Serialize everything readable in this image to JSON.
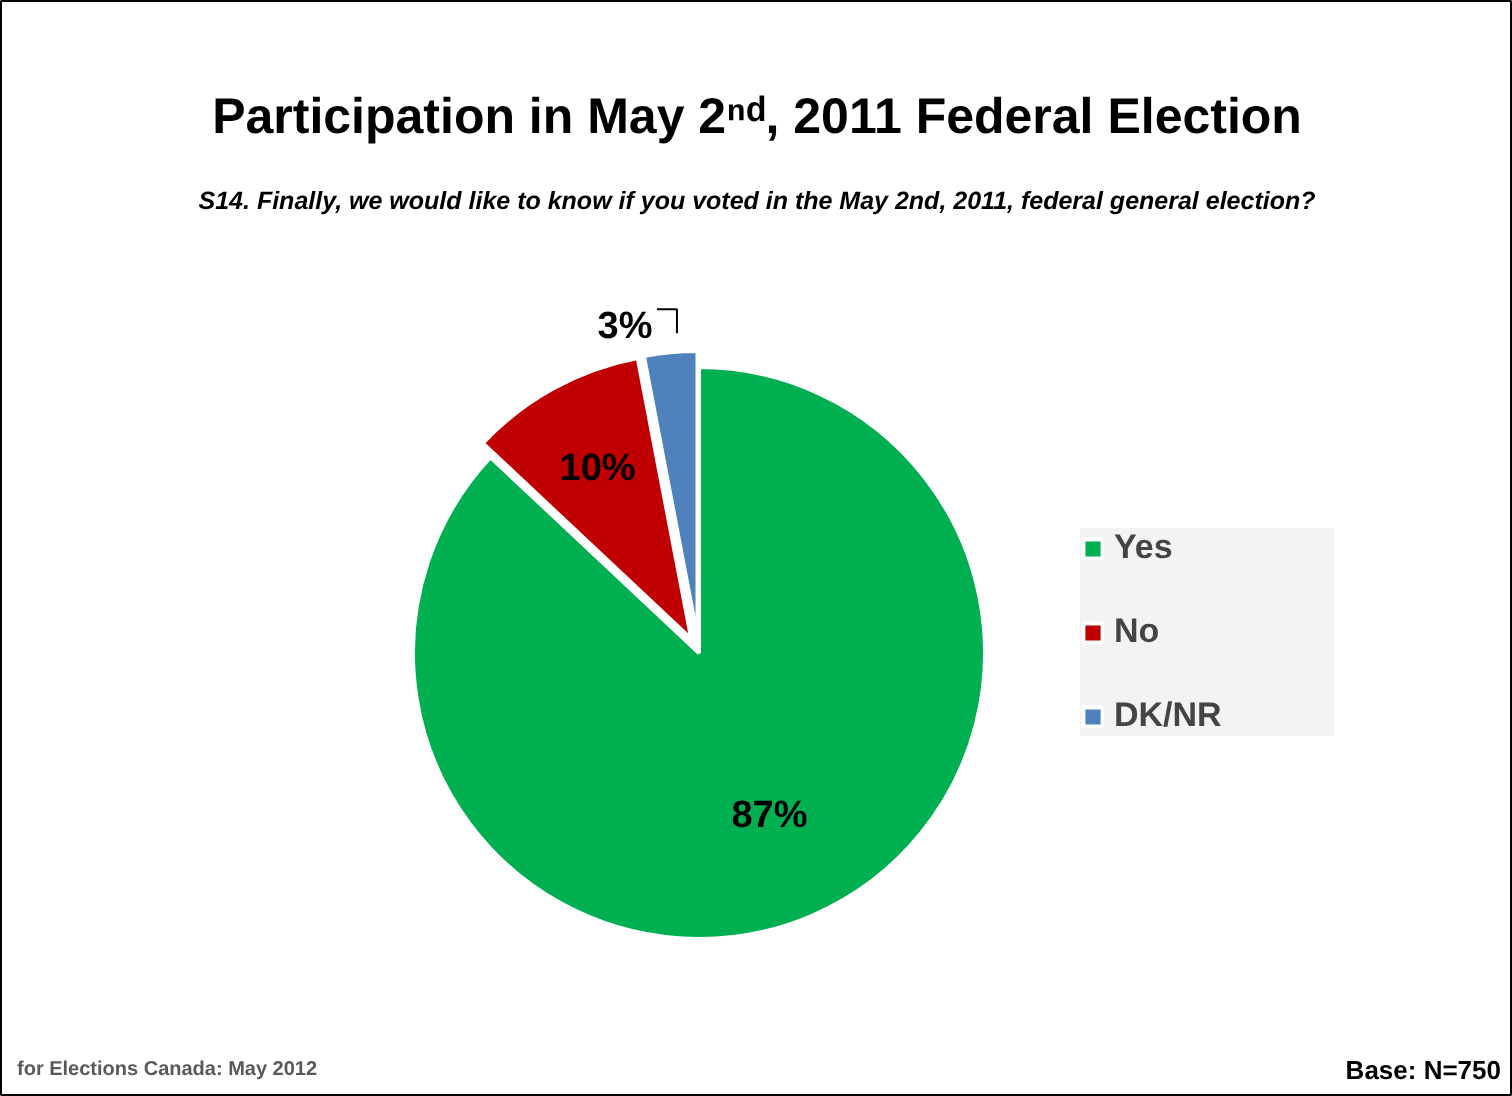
{
  "chart_data": {
    "type": "pie",
    "title": "Participation in May 2ⁿᵈ, 2011 Federal Election",
    "subtitle": "S14. Finally, we would like to know if you voted in the May 2nd, 2011, federal general election?",
    "categories": [
      "Yes",
      "No",
      "DK/NR"
    ],
    "values": [
      87,
      10,
      3
    ],
    "colors": [
      "#00b050",
      "#c00000",
      "#4f81bd"
    ],
    "value_labels": [
      "87%",
      "10%",
      "3%"
    ],
    "legend": "right",
    "annotations": [
      "for Elections Canada: May 2012",
      "Base: N=750"
    ]
  }
}
